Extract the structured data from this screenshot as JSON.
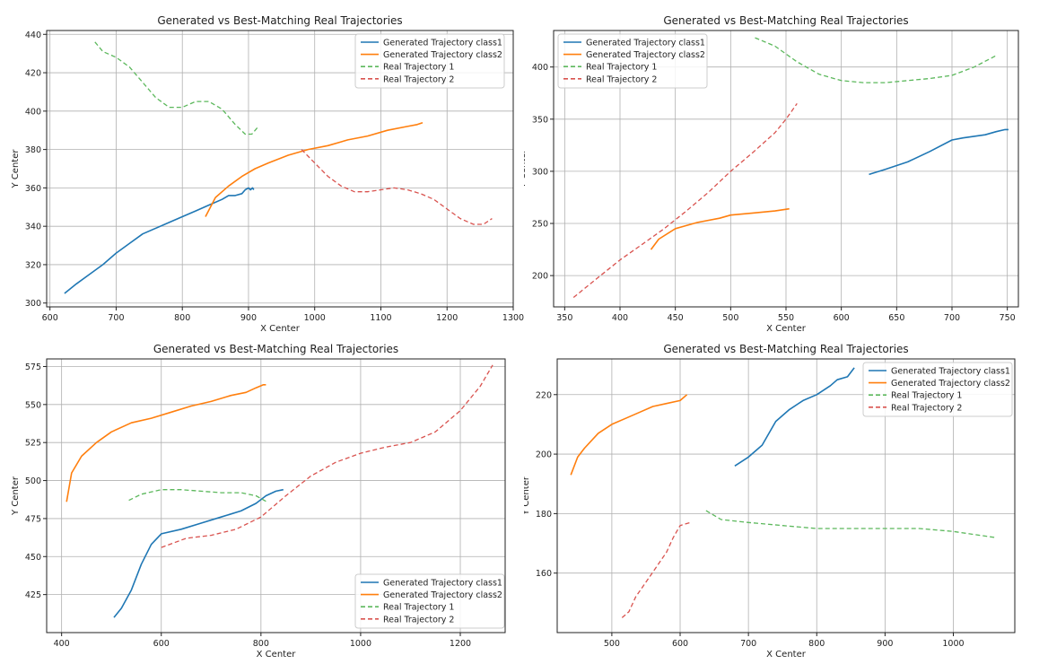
{
  "colors": {
    "class1": "#1f77b4",
    "class2": "#ff7f0e",
    "real1": "#5cb85c",
    "real2": "#d9534f"
  },
  "chart_data": [
    {
      "type": "line",
      "title": "Generated vs Best-Matching Real Trajectories",
      "xlabel": "X Center",
      "ylabel": "Y Center",
      "xlim": [
        595,
        1300
      ],
      "ylim": [
        298,
        442
      ],
      "xticks": [
        600,
        700,
        800,
        900,
        1000,
        1100,
        1200,
        1300
      ],
      "yticks": [
        300,
        320,
        340,
        360,
        380,
        400,
        420,
        440
      ],
      "grid": true,
      "legend_position": "top-right",
      "series": [
        {
          "name": "Generated Trajectory class1",
          "style": "solid",
          "color": "#1f77b4",
          "x": [
            622,
            640,
            660,
            680,
            700,
            720,
            740,
            760,
            780,
            800,
            820,
            840,
            860,
            870,
            880,
            890,
            895,
            900,
            903,
            906,
            908
          ],
          "y": [
            305,
            310,
            315,
            320,
            326,
            331,
            336,
            339,
            342,
            345,
            348,
            351,
            354,
            356,
            356,
            357,
            359,
            360,
            359,
            360,
            359
          ]
        },
        {
          "name": "Generated Trajectory class2",
          "style": "solid",
          "color": "#ff7f0e",
          "x": [
            835,
            850,
            870,
            890,
            910,
            930,
            960,
            990,
            1020,
            1050,
            1080,
            1110,
            1140,
            1155,
            1163
          ],
          "y": [
            345,
            355,
            361,
            366,
            370,
            373,
            377,
            380,
            382,
            385,
            387,
            390,
            392,
            393,
            394
          ]
        },
        {
          "name": "Real Trajectory 1",
          "style": "dashed",
          "color": "#5cb85c",
          "x": [
            668,
            680,
            700,
            720,
            740,
            760,
            780,
            800,
            820,
            840,
            860,
            880,
            895,
            905,
            915
          ],
          "y": [
            436,
            431,
            428,
            423,
            415,
            407,
            402,
            402,
            405,
            405,
            401,
            393,
            388,
            388,
            392
          ]
        },
        {
          "name": "Real Trajectory 2",
          "style": "dashed",
          "color": "#d9534f",
          "x": [
            980,
            1000,
            1020,
            1040,
            1060,
            1080,
            1100,
            1120,
            1140,
            1160,
            1180,
            1200,
            1220,
            1240,
            1255,
            1268
          ],
          "y": [
            380,
            373,
            366,
            361,
            358,
            358,
            359,
            360,
            359,
            357,
            354,
            349,
            344,
            341,
            341,
            344
          ]
        }
      ]
    },
    {
      "type": "line",
      "title": "Generated vs Best-Matching Real Trajectories",
      "xlabel": "X Center",
      "ylabel": "Y Center",
      "xlim": [
        340,
        760
      ],
      "ylim": [
        170,
        435
      ],
      "xticks": [
        350,
        400,
        450,
        500,
        550,
        600,
        650,
        700,
        750
      ],
      "yticks": [
        200,
        250,
        300,
        350,
        400
      ],
      "grid": true,
      "legend_position": "top-left",
      "series": [
        {
          "name": "Generated Trajectory class1",
          "style": "solid",
          "color": "#1f77b4",
          "x": [
            625,
            640,
            660,
            680,
            700,
            710,
            730,
            740,
            748,
            751
          ],
          "y": [
            297,
            302,
            309,
            319,
            330,
            332,
            335,
            338,
            340,
            340
          ]
        },
        {
          "name": "Generated Trajectory class2",
          "style": "solid",
          "color": "#ff7f0e",
          "x": [
            428,
            435,
            450,
            470,
            490,
            500,
            520,
            540,
            553
          ],
          "y": [
            225,
            235,
            245,
            251,
            255,
            258,
            260,
            262,
            264
          ]
        },
        {
          "name": "Real Trajectory 1",
          "style": "dashed",
          "color": "#5cb85c",
          "x": [
            522,
            540,
            560,
            580,
            600,
            620,
            640,
            660,
            680,
            700,
            720,
            740
          ],
          "y": [
            428,
            420,
            405,
            393,
            387,
            385,
            385,
            387,
            389,
            392,
            400,
            411
          ]
        },
        {
          "name": "Real Trajectory 2",
          "style": "dashed",
          "color": "#d9534f",
          "x": [
            358,
            380,
            400,
            420,
            440,
            460,
            480,
            500,
            520,
            540,
            550,
            560
          ],
          "y": [
            179,
            198,
            215,
            230,
            245,
            262,
            280,
            300,
            318,
            337,
            350,
            365
          ]
        }
      ]
    },
    {
      "type": "line",
      "title": "Generated vs Best-Matching Real Trajectories",
      "xlabel": "X Center",
      "ylabel": "Y Center",
      "xlim": [
        370,
        1290
      ],
      "ylim": [
        400,
        580
      ],
      "xticks": [
        400,
        600,
        800,
        1000,
        1200
      ],
      "yticks": [
        425,
        450,
        475,
        500,
        525,
        550,
        575
      ],
      "grid": true,
      "legend_position": "bottom-right",
      "series": [
        {
          "name": "Generated Trajectory class1",
          "style": "solid",
          "color": "#1f77b4",
          "x": [
            505,
            520,
            540,
            560,
            580,
            600,
            640,
            680,
            720,
            760,
            790,
            810,
            830,
            845
          ],
          "y": [
            410,
            416,
            428,
            445,
            458,
            465,
            468,
            472,
            476,
            480,
            485,
            490,
            493,
            494
          ]
        },
        {
          "name": "Generated Trajectory class2",
          "style": "solid",
          "color": "#ff7f0e",
          "x": [
            410,
            420,
            440,
            470,
            500,
            540,
            580,
            620,
            660,
            700,
            740,
            770,
            790,
            805,
            810
          ],
          "y": [
            486,
            505,
            516,
            525,
            532,
            538,
            541,
            545,
            549,
            552,
            556,
            558,
            561,
            563,
            563
          ]
        },
        {
          "name": "Real Trajectory 1",
          "style": "dashed",
          "color": "#5cb85c",
          "x": [
            535,
            560,
            600,
            640,
            680,
            720,
            760,
            790,
            812
          ],
          "y": [
            487,
            491,
            494,
            494,
            493,
            492,
            492,
            490,
            486
          ]
        },
        {
          "name": "Real Trajectory 2",
          "style": "dashed",
          "color": "#d9534f",
          "x": [
            600,
            650,
            700,
            750,
            800,
            850,
            900,
            950,
            1000,
            1050,
            1100,
            1150,
            1200,
            1240,
            1265
          ],
          "y": [
            456,
            462,
            464,
            468,
            476,
            490,
            503,
            512,
            518,
            522,
            525,
            532,
            546,
            562,
            576
          ]
        }
      ]
    },
    {
      "type": "line",
      "title": "Generated vs Best-Matching Real Trajectories",
      "xlabel": "X Center",
      "ylabel": "Y Center",
      "xlim": [
        420,
        1090
      ],
      "ylim": [
        140,
        232
      ],
      "xticks": [
        500,
        600,
        700,
        800,
        900,
        1000
      ],
      "yticks": [
        160,
        180,
        200,
        220
      ],
      "grid": true,
      "legend_position": "top-right",
      "series": [
        {
          "name": "Generated Trajectory class1",
          "style": "solid",
          "color": "#1f77b4",
          "x": [
            680,
            700,
            720,
            740,
            760,
            780,
            800,
            820,
            830,
            845,
            855
          ],
          "y": [
            196,
            199,
            203,
            211,
            215,
            218,
            220,
            223,
            225,
            226,
            229
          ]
        },
        {
          "name": "Generated Trajectory class2",
          "style": "solid",
          "color": "#ff7f0e",
          "x": [
            440,
            450,
            460,
            480,
            500,
            520,
            540,
            560,
            580,
            600,
            610
          ],
          "y": [
            193,
            199,
            202,
            207,
            210,
            212,
            214,
            216,
            217,
            218,
            220
          ]
        },
        {
          "name": "Real Trajectory 1",
          "style": "dashed",
          "color": "#5cb85c",
          "x": [
            638,
            660,
            700,
            750,
            800,
            850,
            900,
            950,
            1000,
            1030,
            1060
          ],
          "y": [
            181,
            178,
            177,
            176,
            175,
            175,
            175,
            175,
            174,
            173,
            172
          ]
        },
        {
          "name": "Real Trajectory 2",
          "style": "dashed",
          "color": "#d9534f",
          "x": [
            515,
            525,
            535,
            550,
            565,
            580,
            590,
            600,
            615
          ],
          "y": [
            145,
            147,
            152,
            157,
            162,
            167,
            172,
            176,
            177
          ]
        }
      ]
    }
  ]
}
